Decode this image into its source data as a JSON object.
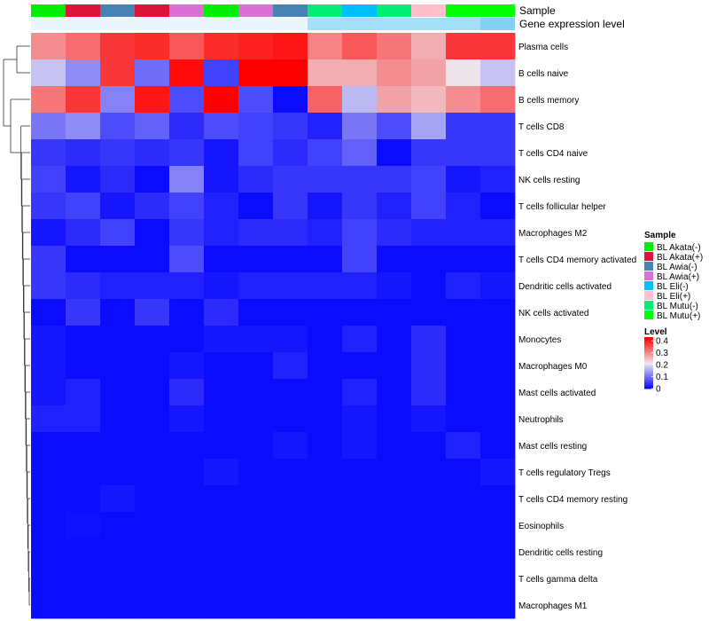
{
  "chart_data": {
    "type": "heatmap",
    "annotation_labels": {
      "sample": "Sample",
      "gene_expression": "Gene expression level"
    },
    "columns": [
      "BL Akata(-)",
      "BL Akata(+)",
      "BL Awia(-)",
      "BL Akata(+)",
      "BL Awia(+)",
      "BL Akata(-)",
      "BL Awia(+)",
      "BL Awia(-)",
      "BL Mutu(-)",
      "BL Eli(-)",
      "BL Mutu(-)",
      "BL Eli(+)",
      "BL Mutu(+)",
      "BL Mutu(+)"
    ],
    "gene_expression_level": [
      0.05,
      0.05,
      0.05,
      0.05,
      0.05,
      0.05,
      0.05,
      0.05,
      0.55,
      0.55,
      0.55,
      0.55,
      0.55,
      0.8
    ],
    "rows": [
      "Plasma cells",
      "B cells naive",
      "B cells memory",
      "T cells CD8",
      "T cells CD4 naive",
      "NK cells resting",
      "T cells follicular helper",
      "Macrophages M2",
      "T cells CD4 memory activated",
      "Dendritic cells activated",
      "NK cells activated",
      "Monocytes",
      "Macrophages M0",
      "Mast cells activated",
      "Neutrophils",
      "Mast cells resting",
      "T cells regulatory  Tregs",
      "T cells CD4 memory resting",
      "Eosinophils",
      "Dendritic cells resting",
      "T cells gamma delta",
      "Macrophages M1"
    ],
    "values": [
      [
        0.3,
        0.33,
        0.38,
        0.39,
        0.35,
        0.39,
        0.4,
        0.41,
        0.31,
        0.35,
        0.32,
        0.27,
        0.38,
        0.38
      ],
      [
        0.18,
        0.13,
        0.38,
        0.1,
        0.42,
        0.06,
        0.43,
        0.43,
        0.27,
        0.27,
        0.3,
        0.28,
        0.22,
        0.18
      ],
      [
        0.32,
        0.38,
        0.12,
        0.41,
        0.07,
        0.43,
        0.07,
        0.01,
        0.34,
        0.17,
        0.28,
        0.26,
        0.3,
        0.33
      ],
      [
        0.11,
        0.13,
        0.07,
        0.09,
        0.04,
        0.07,
        0.06,
        0.05,
        0.03,
        0.11,
        0.07,
        0.15,
        0.05,
        0.05
      ],
      [
        0.05,
        0.04,
        0.05,
        0.04,
        0.05,
        0.02,
        0.06,
        0.04,
        0.06,
        0.09,
        0.01,
        0.05,
        0.05,
        0.05
      ],
      [
        0.06,
        0.02,
        0.04,
        0.01,
        0.12,
        0.02,
        0.04,
        0.05,
        0.05,
        0.05,
        0.05,
        0.06,
        0.02,
        0.03
      ],
      [
        0.05,
        0.06,
        0.02,
        0.04,
        0.06,
        0.03,
        0.01,
        0.05,
        0.02,
        0.05,
        0.03,
        0.06,
        0.03,
        0.01
      ],
      [
        0.02,
        0.04,
        0.06,
        0.01,
        0.05,
        0.03,
        0.04,
        0.04,
        0.03,
        0.06,
        0.04,
        0.03,
        0.03,
        0.03
      ],
      [
        0.05,
        0.01,
        0.01,
        0.01,
        0.07,
        0.01,
        0.01,
        0.01,
        0.01,
        0.06,
        0.01,
        0.01,
        0.01,
        0.01
      ],
      [
        0.05,
        0.04,
        0.03,
        0.03,
        0.03,
        0.02,
        0.03,
        0.03,
        0.03,
        0.03,
        0.02,
        0.01,
        0.03,
        0.02
      ],
      [
        0.01,
        0.05,
        0.01,
        0.05,
        0.01,
        0.04,
        0.01,
        0.01,
        0.01,
        0.01,
        0.01,
        0.01,
        0.01,
        0.01
      ],
      [
        0.02,
        0.01,
        0.01,
        0.01,
        0.01,
        0.02,
        0.02,
        0.02,
        0.01,
        0.03,
        0.01,
        0.04,
        0.01,
        0.01
      ],
      [
        0.02,
        0.01,
        0.01,
        0.01,
        0.02,
        0.01,
        0.01,
        0.03,
        0.01,
        0.01,
        0.01,
        0.04,
        0.01,
        0.01
      ],
      [
        0.02,
        0.03,
        0.01,
        0.01,
        0.04,
        0.01,
        0.01,
        0.01,
        0.01,
        0.03,
        0.01,
        0.04,
        0.01,
        0.01
      ],
      [
        0.03,
        0.03,
        0.01,
        0.01,
        0.02,
        0.01,
        0.01,
        0.01,
        0.01,
        0.02,
        0.01,
        0.02,
        0.01,
        0.01
      ],
      [
        0.01,
        0.01,
        0.01,
        0.01,
        0.01,
        0.01,
        0.01,
        0.02,
        0.01,
        0.02,
        0.01,
        0.01,
        0.03,
        0.01
      ],
      [
        0.01,
        0.01,
        0.01,
        0.01,
        0.01,
        0.02,
        0.01,
        0.01,
        0.01,
        0.01,
        0.01,
        0.01,
        0.01,
        0.02
      ],
      [
        0.01,
        0.01,
        0.02,
        0.01,
        0.01,
        0.01,
        0.01,
        0.01,
        0.01,
        0.01,
        0.01,
        0.01,
        0.01,
        0.01
      ],
      [
        0.01,
        0.015,
        0.01,
        0.01,
        0.01,
        0.01,
        0.01,
        0.01,
        0.01,
        0.01,
        0.01,
        0.01,
        0.01,
        0.01
      ],
      [
        0.01,
        0.01,
        0.01,
        0.01,
        0.01,
        0.01,
        0.01,
        0.01,
        0.01,
        0.01,
        0.01,
        0.01,
        0.01,
        0.01
      ],
      [
        0.01,
        0.01,
        0.01,
        0.01,
        0.01,
        0.01,
        0.01,
        0.01,
        0.01,
        0.01,
        0.01,
        0.01,
        0.01,
        0.01
      ],
      [
        0.01,
        0.01,
        0.01,
        0.01,
        0.01,
        0.01,
        0.01,
        0.01,
        0.01,
        0.01,
        0.01,
        0.01,
        0.01,
        0.01
      ]
    ],
    "legend_sample": {
      "title": "Sample",
      "entries": [
        {
          "label": "BL Akata(-)",
          "color": "#00ee00"
        },
        {
          "label": "BL Akata(+)",
          "color": "#dc143c"
        },
        {
          "label": "BL Awia(-)",
          "color": "#4682b4"
        },
        {
          "label": "BL Awia(+)",
          "color": "#da70d6"
        },
        {
          "label": "BL Eli(-)",
          "color": "#00bfff"
        },
        {
          "label": "BL Eli(+)",
          "color": "#ffc0cb"
        },
        {
          "label": "BL Mutu(-)",
          "color": "#00ee76"
        },
        {
          "label": "BL Mutu(+)",
          "color": "#00ff00"
        }
      ]
    },
    "legend_level": {
      "title": "Level",
      "ticks": [
        "0.4",
        "0.3",
        "0.2",
        "0.1",
        "0"
      ],
      "tick_values": [
        0.4,
        0.3,
        0.2,
        0.1,
        0
      ],
      "range": [
        0,
        0.43
      ]
    },
    "colors": {
      "low": "#0000ff",
      "mid": "#ede9ef",
      "high": "#ff0000",
      "expr_low": "#f2f8fc",
      "expr_high": "#66c8f2"
    }
  }
}
